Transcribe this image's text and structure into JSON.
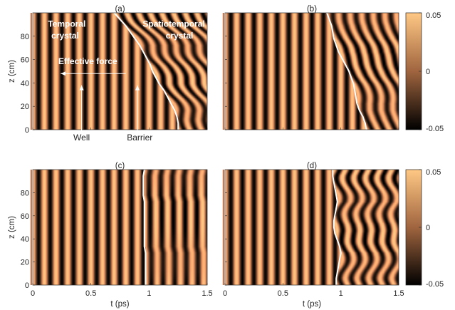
{
  "chart_data": {
    "type": "heatmap",
    "x_range": [
      0,
      1.5
    ],
    "y_range": [
      0,
      100
    ],
    "color_range": [
      -0.05,
      0.05
    ],
    "colormap": "copper",
    "x_ticks": [
      "0",
      "0.5",
      "1",
      "1.5"
    ],
    "y_ticks": [
      "0",
      "20",
      "40",
      "60",
      "80"
    ],
    "xlabel": "t (ps)",
    "ylabel": "z (cm)",
    "colorbar_ticks": [
      "0.05",
      "0",
      "-0.05"
    ],
    "panels": [
      {
        "label": "(a)",
        "interface_t": [
          1.25,
          1.25,
          1.24,
          1.22,
          1.19,
          1.16,
          1.13,
          1.09,
          1.06,
          1.03,
          1.01,
          0.98,
          0.95,
          0.92,
          0.88,
          0.84,
          0.8,
          0.75,
          0.7
        ],
        "annotations": {
          "temporal_line1": "Temporal",
          "temporal_line2": "crystal",
          "spatio_line1": "Spatiotemporal",
          "spatio_line2": "crystal",
          "force": "Effective force",
          "well": "Well",
          "barrier": "Barrier"
        }
      },
      {
        "label": "(b)",
        "interface_t": [
          1.22,
          1.21,
          1.19,
          1.16,
          1.14,
          1.13,
          1.12,
          1.11,
          1.09,
          1.07,
          1.04,
          1.01,
          0.98,
          0.96,
          0.94,
          0.93,
          0.92,
          0.9,
          0.88
        ]
      },
      {
        "label": "(c)",
        "interface_t": [
          0.97,
          0.97,
          0.97,
          0.97,
          0.97,
          0.97,
          0.96,
          0.96,
          0.96,
          0.96,
          0.96,
          0.96,
          0.96,
          0.96,
          0.95,
          0.95,
          0.95,
          0.95,
          0.96
        ]
      },
      {
        "label": "(d)",
        "interface_t": [
          0.96,
          0.96,
          0.97,
          0.98,
          0.99,
          1.0,
          0.99,
          0.97,
          0.95,
          0.94,
          0.94,
          0.95,
          0.96,
          0.97,
          0.96,
          0.95,
          0.94,
          0.93,
          0.93
        ]
      }
    ]
  }
}
